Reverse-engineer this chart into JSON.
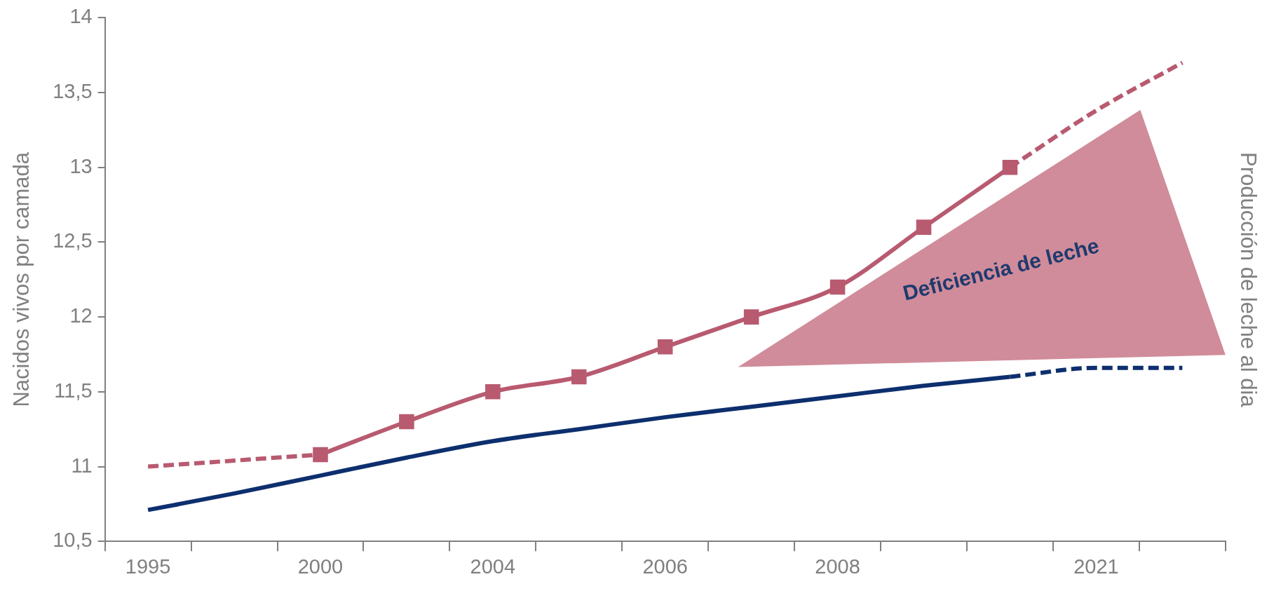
{
  "chart_data": {
    "type": "line",
    "ylabel": "Nacidos vivos por camada",
    "y2label": "Producción de leche al dia",
    "categories": [
      "1995",
      null,
      "2000",
      null,
      "2004",
      null,
      "2006",
      null,
      "2008",
      null,
      null,
      "2021",
      null
    ],
    "ylim": [
      10.5,
      14
    ],
    "yticks": [
      {
        "value": 10.5,
        "label": "10,5"
      },
      11,
      {
        "value": 11.5,
        "label": "11,5"
      },
      12,
      {
        "value": 12.5,
        "label": "12,5"
      },
      13,
      {
        "value": 13.5,
        "label": "13,5"
      },
      14
    ],
    "grid": false,
    "legend": false,
    "series": [
      {
        "color": "#b85a70",
        "line_style": "dashed",
        "marker": "none",
        "values": [
          11.0,
          11.04,
          11.08,
          null,
          null,
          null,
          null,
          null,
          null,
          null,
          null,
          null,
          null
        ]
      },
      {
        "color": "#b85a70",
        "line_style": "solid",
        "marker": "square",
        "values": [
          null,
          null,
          11.08,
          11.3,
          11.5,
          11.6,
          11.8,
          12.0,
          12.2,
          12.6,
          13.0,
          null,
          null
        ]
      },
      {
        "color": "#b85a70",
        "line_style": "dashed",
        "marker": "none",
        "values": [
          null,
          null,
          null,
          null,
          null,
          null,
          null,
          null,
          null,
          null,
          13.0,
          13.38,
          13.7
        ]
      },
      {
        "color": "#0d2f6e",
        "line_style": "solid",
        "marker": "none",
        "values": [
          10.71,
          10.82,
          10.94,
          11.06,
          11.17,
          11.25,
          11.33,
          11.4,
          11.47,
          11.54,
          11.6,
          null,
          null
        ]
      },
      {
        "color": "#0d2f6e",
        "line_style": "dashed",
        "marker": "none",
        "values": [
          null,
          null,
          null,
          null,
          null,
          null,
          null,
          null,
          null,
          null,
          11.6,
          11.66,
          11.66
        ]
      }
    ],
    "annotations": [
      "Deficiencia de leche"
    ]
  }
}
